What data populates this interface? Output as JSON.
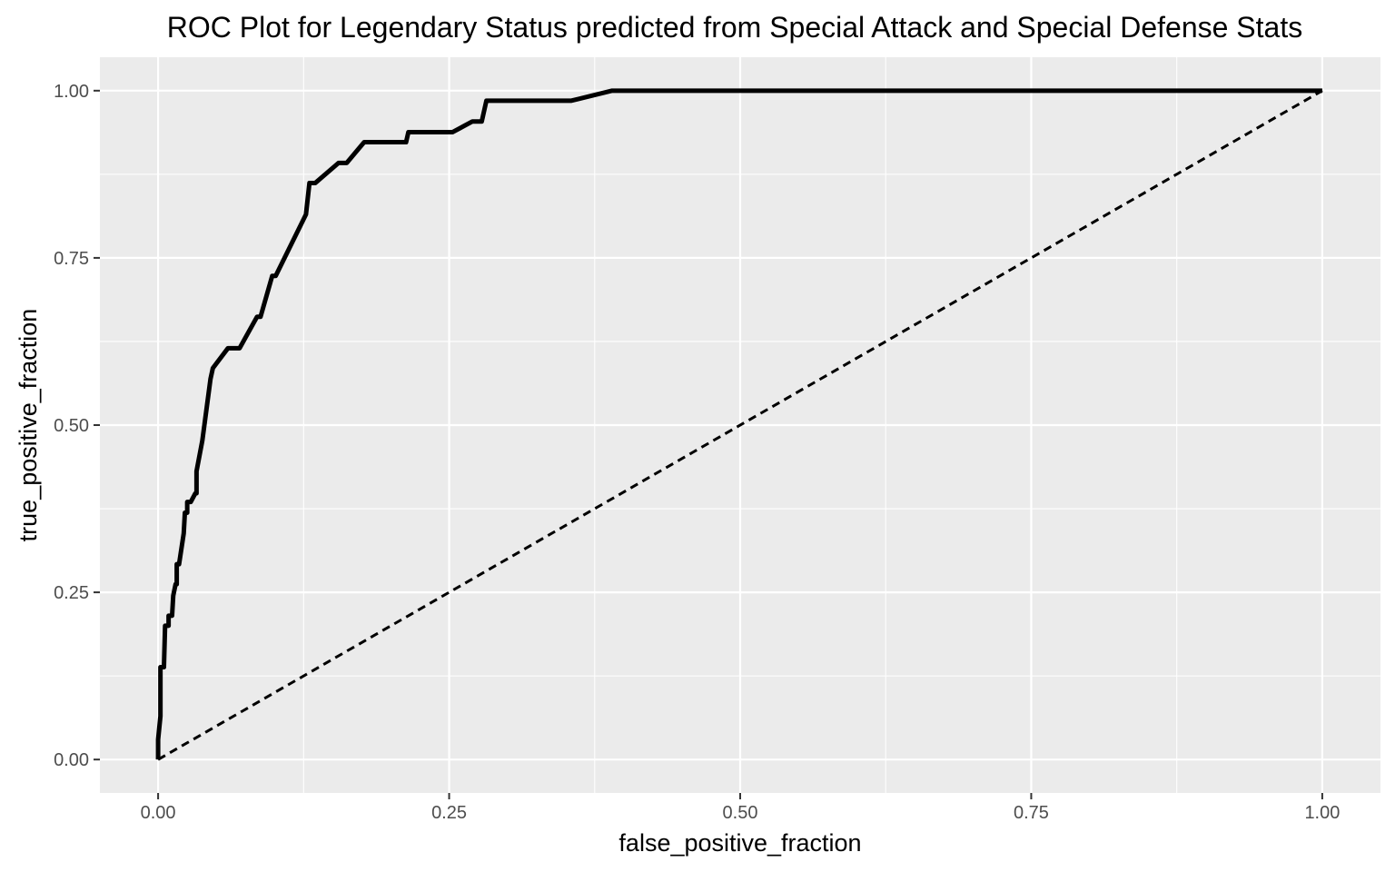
{
  "chart_data": {
    "type": "line",
    "title": "ROC Plot for Legendary Status predicted from Special Attack and Special Defense Stats",
    "xlabel": "false_positive_fraction",
    "ylabel": "true_positive_fraction",
    "xlim": [
      -0.05,
      1.05
    ],
    "ylim": [
      -0.05,
      1.05
    ],
    "x_ticks": [
      0,
      0.25,
      0.5,
      0.75,
      1
    ],
    "x_tick_labels": [
      "0.00",
      "0.25",
      "0.50",
      "0.75",
      "1.00"
    ],
    "y_ticks": [
      0,
      0.25,
      0.5,
      0.75,
      1
    ],
    "y_tick_labels": [
      "0.00",
      "0.25",
      "0.50",
      "0.75",
      "1.00"
    ],
    "grid": true,
    "legend": "none",
    "colors": {
      "panel": "#EBEBEB",
      "grid": "#FFFFFF",
      "line": "#000000"
    },
    "series": [
      {
        "style": "solid",
        "points": [
          [
            0.0,
            0.0
          ],
          [
            0.0,
            0.03
          ],
          [
            0.002,
            0.065
          ],
          [
            0.002,
            0.138
          ],
          [
            0.005,
            0.138
          ],
          [
            0.006,
            0.2
          ],
          [
            0.009,
            0.2
          ],
          [
            0.009,
            0.215
          ],
          [
            0.012,
            0.215
          ],
          [
            0.013,
            0.245
          ],
          [
            0.015,
            0.262
          ],
          [
            0.016,
            0.262
          ],
          [
            0.016,
            0.292
          ],
          [
            0.018,
            0.292
          ],
          [
            0.022,
            0.338
          ],
          [
            0.023,
            0.369
          ],
          [
            0.025,
            0.369
          ],
          [
            0.025,
            0.385
          ],
          [
            0.028,
            0.385
          ],
          [
            0.032,
            0.398
          ],
          [
            0.033,
            0.398
          ],
          [
            0.033,
            0.431
          ],
          [
            0.038,
            0.477
          ],
          [
            0.045,
            0.569
          ],
          [
            0.047,
            0.585
          ],
          [
            0.05,
            0.592
          ],
          [
            0.06,
            0.615
          ],
          [
            0.07,
            0.615
          ],
          [
            0.085,
            0.662
          ],
          [
            0.088,
            0.662
          ],
          [
            0.098,
            0.723
          ],
          [
            0.101,
            0.723
          ],
          [
            0.127,
            0.815
          ],
          [
            0.13,
            0.862
          ],
          [
            0.135,
            0.862
          ],
          [
            0.155,
            0.892
          ],
          [
            0.162,
            0.892
          ],
          [
            0.177,
            0.923
          ],
          [
            0.213,
            0.923
          ],
          [
            0.215,
            0.938
          ],
          [
            0.253,
            0.938
          ],
          [
            0.27,
            0.954
          ],
          [
            0.278,
            0.954
          ],
          [
            0.282,
            0.985
          ],
          [
            0.355,
            0.985
          ],
          [
            0.39,
            1.0
          ],
          [
            1.0,
            1.0
          ]
        ]
      },
      {
        "style": "dashed",
        "points": [
          [
            0,
            0
          ],
          [
            1,
            1
          ]
        ]
      }
    ]
  }
}
